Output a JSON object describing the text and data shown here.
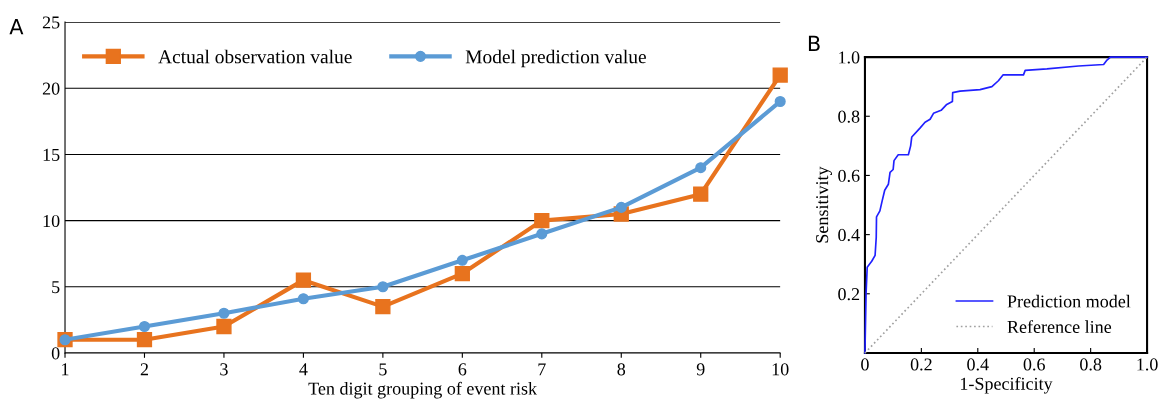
{
  "chart_data": [
    {
      "type": "line",
      "xlabel": "Ten digit grouping of event risk",
      "annotations": [
        "A"
      ],
      "x": [
        1,
        2,
        3,
        4,
        5,
        6,
        7,
        8,
        9,
        10
      ],
      "series": [
        {
          "name": "Actual observation value",
          "color": "#e8731e",
          "marker": "square",
          "values": [
            1,
            1,
            2,
            5.5,
            3.5,
            6,
            10,
            10.5,
            12,
            21
          ]
        },
        {
          "name": "Model prediction value",
          "color": "#5b9bd5",
          "marker": "circle",
          "values": [
            1,
            2,
            3,
            4.1,
            5,
            7,
            9,
            11,
            14,
            19
          ]
        }
      ],
      "xlim": [
        1,
        10
      ],
      "xticks": [
        1,
        2,
        3,
        4,
        5,
        6,
        7,
        8,
        9,
        10
      ],
      "ylim": [
        0,
        25
      ],
      "yticks": [
        0,
        5,
        10,
        15,
        20,
        25
      ],
      "grid": "y",
      "legend": "top",
      "line_style": "solid"
    },
    {
      "type": "line",
      "xlabel": "1-Specificity",
      "ylabel": "Sensitivity",
      "annotations": [
        "B"
      ],
      "series": [
        {
          "name": "Prediction model",
          "color": "#2020ff",
          "line_style": "solid",
          "x": [
            0,
            0.004,
            0.008,
            0.024,
            0.036,
            0.04,
            0.041,
            0.053,
            0.06,
            0.07,
            0.083,
            0.089,
            0.1,
            0.103,
            0.118,
            0.154,
            0.162,
            0.166,
            0.195,
            0.213,
            0.231,
            0.243,
            0.27,
            0.29,
            0.31,
            0.311,
            0.337,
            0.408,
            0.45,
            0.473,
            0.49,
            0.562,
            0.568,
            0.645,
            0.757,
            0.846,
            0.858,
            0.87,
            1
          ],
          "values": [
            0,
            0.2,
            0.29,
            0.31,
            0.33,
            0.39,
            0.46,
            0.48,
            0.51,
            0.55,
            0.57,
            0.61,
            0.62,
            0.65,
            0.67,
            0.67,
            0.7,
            0.73,
            0.76,
            0.78,
            0.79,
            0.81,
            0.82,
            0.84,
            0.85,
            0.88,
            0.885,
            0.89,
            0.9,
            0.92,
            0.94,
            0.94,
            0.955,
            0.96,
            0.97,
            0.975,
            0.99,
            1,
            1
          ]
        },
        {
          "name": "Reference line",
          "color": "#a0a0a0",
          "line_style": "dotted",
          "x": [
            0,
            1
          ],
          "values": [
            0,
            1
          ]
        }
      ],
      "xlim": [
        0,
        1
      ],
      "xticks": [
        0,
        0.2,
        0.4,
        0.6,
        0.8,
        {
          "value": 1,
          "label": "1.0"
        }
      ],
      "ylim": [
        0,
        1
      ],
      "yticks": [
        0.2,
        0.4,
        0.6,
        0.8,
        {
          "value": 1,
          "label": "1.0"
        }
      ],
      "grid": false,
      "legend": "bottom right",
      "marker": "none"
    }
  ]
}
